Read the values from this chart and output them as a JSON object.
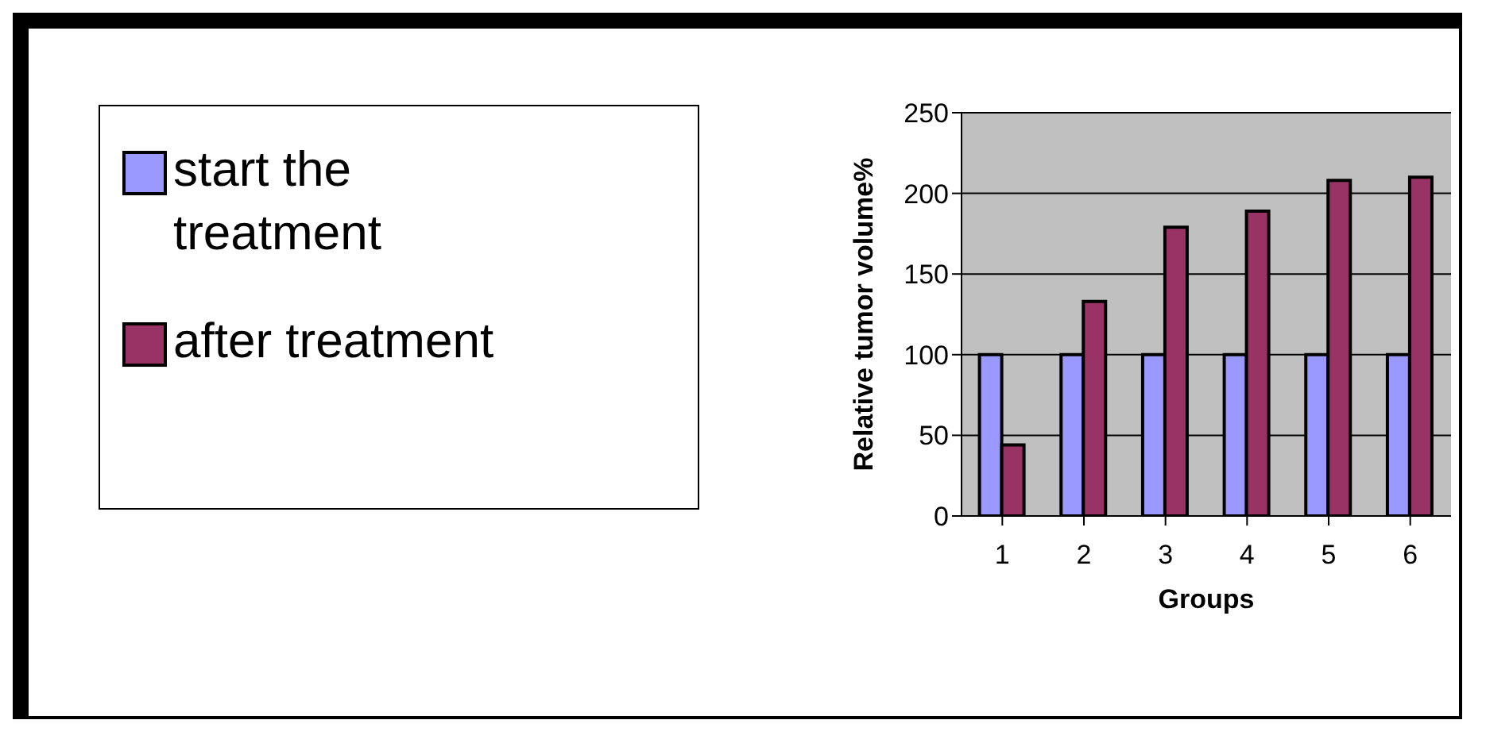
{
  "chart_data": {
    "type": "bar",
    "categories": [
      "1",
      "2",
      "3",
      "4",
      "5",
      "6"
    ],
    "series": [
      {
        "name": "start the treatment",
        "color": "#9999ff",
        "values": [
          100,
          100,
          100,
          100,
          100,
          100
        ]
      },
      {
        "name": "after treatment",
        "color": "#993366",
        "values": [
          44,
          133,
          179,
          189,
          208,
          210
        ]
      }
    ],
    "xlabel": "Groups",
    "ylabel": "Relative tumor volume%",
    "ylim": [
      0,
      250
    ],
    "yticks": [
      0,
      50,
      100,
      150,
      200,
      250
    ],
    "grid": "y",
    "legend": "left"
  }
}
